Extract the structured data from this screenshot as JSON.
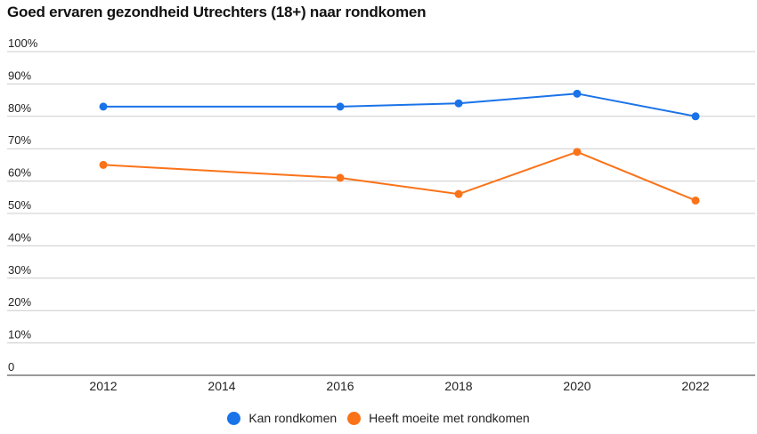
{
  "chart_data": {
    "type": "line",
    "title": "Goed ervaren gezondheid Utrechters (18+) naar rondkomen",
    "x": [
      2012,
      2016,
      2018,
      2020,
      2022
    ],
    "x_ticks": [
      "2012",
      "2014",
      "2016",
      "2018",
      "2020",
      "2022"
    ],
    "xlim": [
      2011,
      2023
    ],
    "y_ticks": [
      "0",
      "10%",
      "20%",
      "30%",
      "40%",
      "50%",
      "60%",
      "70%",
      "80%",
      "90%",
      "100%"
    ],
    "ylim": [
      0,
      100
    ],
    "grid": true,
    "legend_position": "bottom",
    "series": [
      {
        "name": "Kan rondkomen",
        "color": "#1a73e8",
        "values": [
          83,
          83,
          84,
          87,
          80
        ]
      },
      {
        "name": "Heeft moeite met rondkomen",
        "color": "#fa7319",
        "values": [
          65,
          61,
          56,
          69,
          54
        ]
      }
    ]
  }
}
